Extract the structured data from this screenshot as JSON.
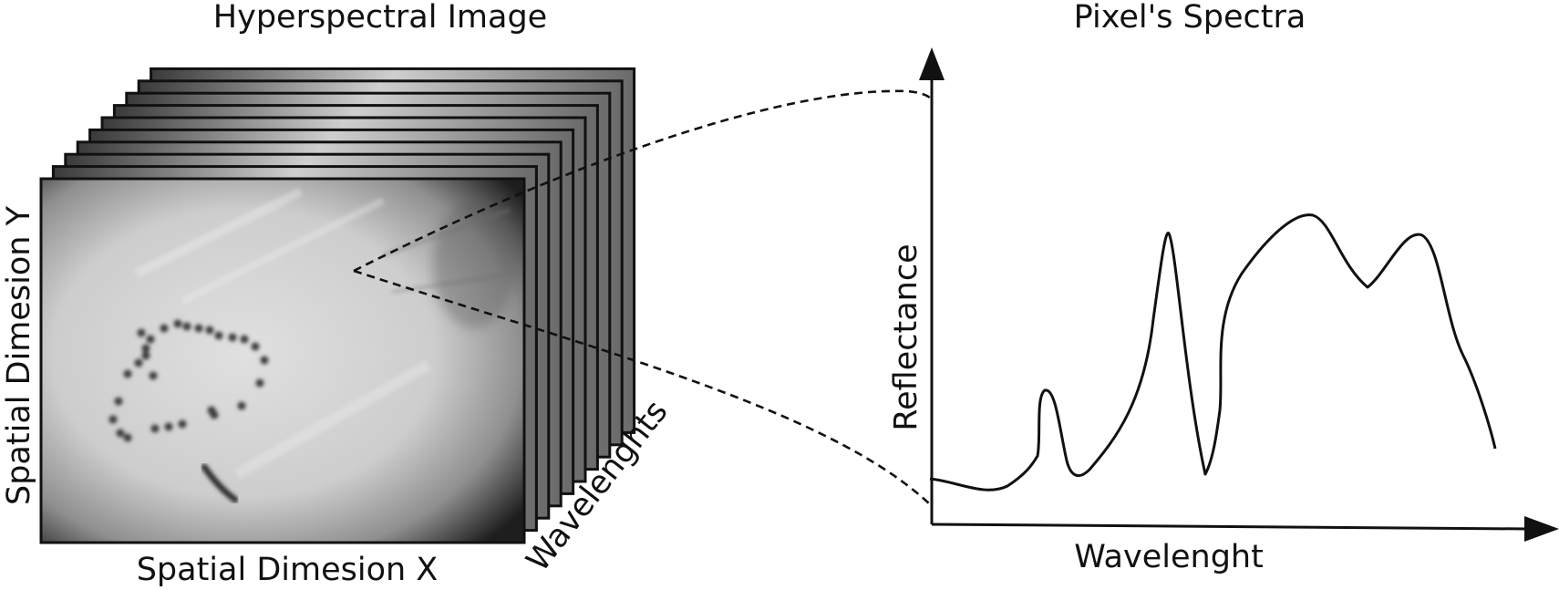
{
  "left_panel": {
    "title": "Hyperspectral Image",
    "x_label": "Spatial Dimesion X",
    "y_label": "Spatial Dimesion Y",
    "depth_label": "Wavelenghts",
    "layer_count": 10
  },
  "right_panel": {
    "title": "Pixel's Spectra",
    "x_label": "Wavelenght",
    "y_label": "Reflectance"
  },
  "colors": {
    "stroke": "#111111",
    "image_light": "#d6d6d6",
    "image_dark": "#1e1e1e"
  }
}
